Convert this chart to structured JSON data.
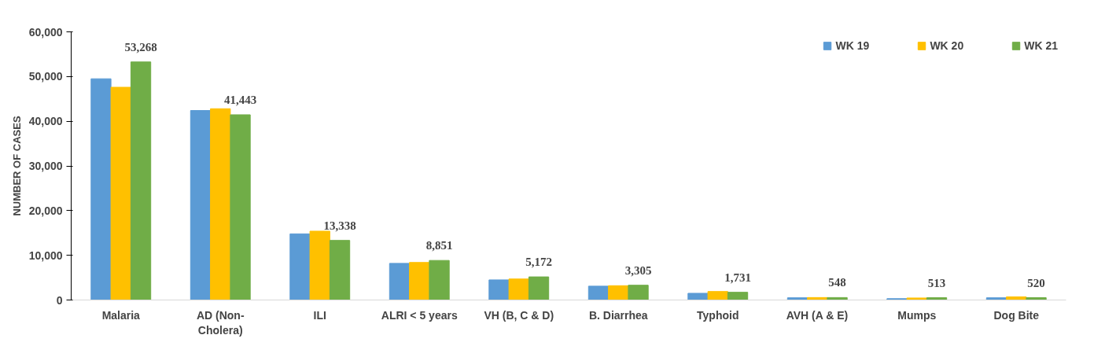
{
  "chart_data": {
    "type": "bar",
    "ylabel": "NUMBER OF CASES",
    "categories": [
      "Malaria",
      "AD (Non-\nCholera)",
      "ILI",
      "ALRI < 5 years",
      "VH (B, C & D)",
      "B. Diarrhea",
      "Typhoid",
      "AVH (A & E)",
      "Mumps",
      "Dog Bite"
    ],
    "series": [
      {
        "name": "WK 19",
        "color": "#5b9bd5",
        "values": [
          49500,
          42400,
          14800,
          8200,
          4500,
          3100,
          1500,
          500,
          300,
          500
        ]
      },
      {
        "name": "WK 20",
        "color": "#ffc000",
        "values": [
          47600,
          42800,
          15400,
          8400,
          4700,
          3200,
          1900,
          550,
          450,
          700
        ]
      },
      {
        "name": "WK 21",
        "color": "#70ad47",
        "values": [
          53268,
          41443,
          13338,
          8851,
          5172,
          3305,
          1731,
          548,
          513,
          520
        ],
        "value_labels": [
          "53,268",
          "41,443",
          "13,338",
          "8,851",
          "5,172",
          "3,305",
          "1,731",
          "548",
          "513",
          "520"
        ]
      }
    ],
    "ylim": [
      0,
      60000
    ],
    "yticks": [
      {
        "value": 0,
        "label": "0"
      },
      {
        "value": 10000,
        "label": "10,000"
      },
      {
        "value": 20000,
        "label": "20,000"
      },
      {
        "value": 30000,
        "label": "30,000"
      },
      {
        "value": 40000,
        "label": "40,000"
      },
      {
        "value": 50000,
        "label": "50,000"
      },
      {
        "value": 60000,
        "label": "60,000"
      }
    ],
    "grid": false,
    "legend": "top right"
  }
}
